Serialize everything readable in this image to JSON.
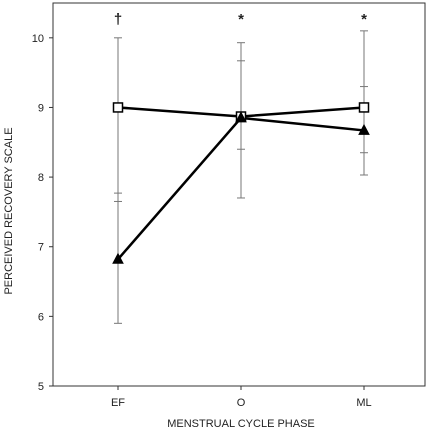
{
  "chart_data": {
    "type": "line",
    "xlabel": "MENSTRUAL CYCLE PHASE",
    "ylabel": "PERCEIVED RECOVERY SCALE",
    "categories": [
      "EF",
      "O",
      "ML"
    ],
    "ylim": [
      5,
      10.5
    ],
    "yticks": [
      5,
      6,
      7,
      8,
      9,
      10
    ],
    "grid": false,
    "series": [
      {
        "marker": "square-open",
        "values": [
          9.0,
          8.87,
          9.0
        ],
        "error_low": [
          7.65,
          7.7,
          8.35
        ],
        "error_high": [
          10.0,
          9.93,
          10.1
        ]
      },
      {
        "marker": "triangle-filled",
        "values": [
          6.82,
          8.85,
          8.67
        ],
        "error_low": [
          5.9,
          8.4,
          8.03
        ],
        "error_high": [
          7.77,
          9.67,
          9.3
        ]
      }
    ],
    "annotations": [
      "†",
      "*",
      "*"
    ]
  }
}
